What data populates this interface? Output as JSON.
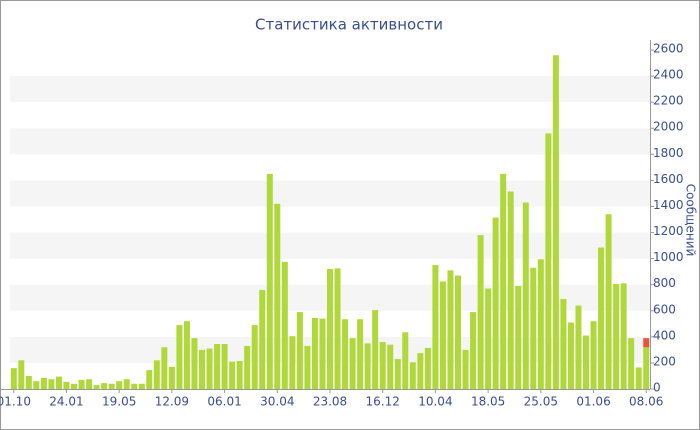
{
  "chart_data": {
    "type": "bar",
    "title": "Статистика активности",
    "y_label": "Сообщений",
    "categories": [
      "01.10",
      null,
      null,
      null,
      null,
      null,
      null,
      "24.01",
      null,
      null,
      null,
      null,
      null,
      null,
      "19.05",
      null,
      null,
      null,
      null,
      null,
      null,
      "12.09",
      null,
      null,
      null,
      null,
      null,
      null,
      "06.01",
      null,
      null,
      null,
      null,
      null,
      null,
      "30.04",
      null,
      null,
      null,
      null,
      null,
      null,
      "23.08",
      null,
      null,
      null,
      null,
      null,
      null,
      "16.12",
      null,
      null,
      null,
      null,
      null,
      null,
      "10.04",
      null,
      null,
      null,
      null,
      null,
      null,
      "18.05",
      null,
      null,
      null,
      null,
      null,
      null,
      "25.05",
      null,
      null,
      null,
      null,
      null,
      null,
      "01.06",
      null,
      null,
      null,
      null,
      null,
      null,
      "08.06"
    ],
    "series": [
      {
        "color": "#b0d83a",
        "values": [
          160,
          220,
          100,
          60,
          85,
          75,
          95,
          55,
          40,
          70,
          75,
          30,
          45,
          40,
          60,
          75,
          40,
          40,
          145,
          220,
          320,
          170,
          490,
          520,
          390,
          300,
          310,
          345,
          345,
          210,
          215,
          330,
          490,
          760,
          1650,
          1420,
          975,
          405,
          590,
          330,
          545,
          540,
          920,
          925,
          535,
          390,
          535,
          350,
          605,
          360,
          340,
          230,
          435,
          205,
          275,
          315,
          950,
          825,
          910,
          870,
          300,
          590,
          1180,
          770,
          1315,
          1650,
          1515,
          790,
          1430,
          930,
          995,
          1960,
          2560,
          690,
          510,
          640,
          410,
          520,
          1085,
          1340,
          805,
          810,
          390,
          165,
          320
        ]
      },
      {
        "color": "#e8553a",
        "values": [
          null,
          null,
          null,
          null,
          null,
          null,
          null,
          null,
          null,
          null,
          null,
          null,
          null,
          null,
          null,
          null,
          null,
          null,
          null,
          null,
          null,
          null,
          null,
          null,
          null,
          null,
          null,
          null,
          null,
          null,
          null,
          null,
          null,
          null,
          null,
          null,
          null,
          null,
          null,
          null,
          null,
          null,
          null,
          null,
          null,
          null,
          null,
          null,
          null,
          null,
          null,
          null,
          null,
          null,
          null,
          null,
          null,
          null,
          null,
          null,
          null,
          null,
          null,
          null,
          null,
          null,
          null,
          null,
          null,
          null,
          null,
          null,
          null,
          null,
          null,
          null,
          null,
          null,
          null,
          null,
          null,
          null,
          null,
          null,
          70
        ]
      }
    ],
    "stacked": true,
    "ylim": [
      0,
      2600
    ],
    "yticks": [
      0,
      200,
      400,
      600,
      800,
      1000,
      1200,
      1400,
      1600,
      1800,
      2000,
      2200,
      2400,
      2600
    ],
    "stripes": "#f5f5f5"
  }
}
